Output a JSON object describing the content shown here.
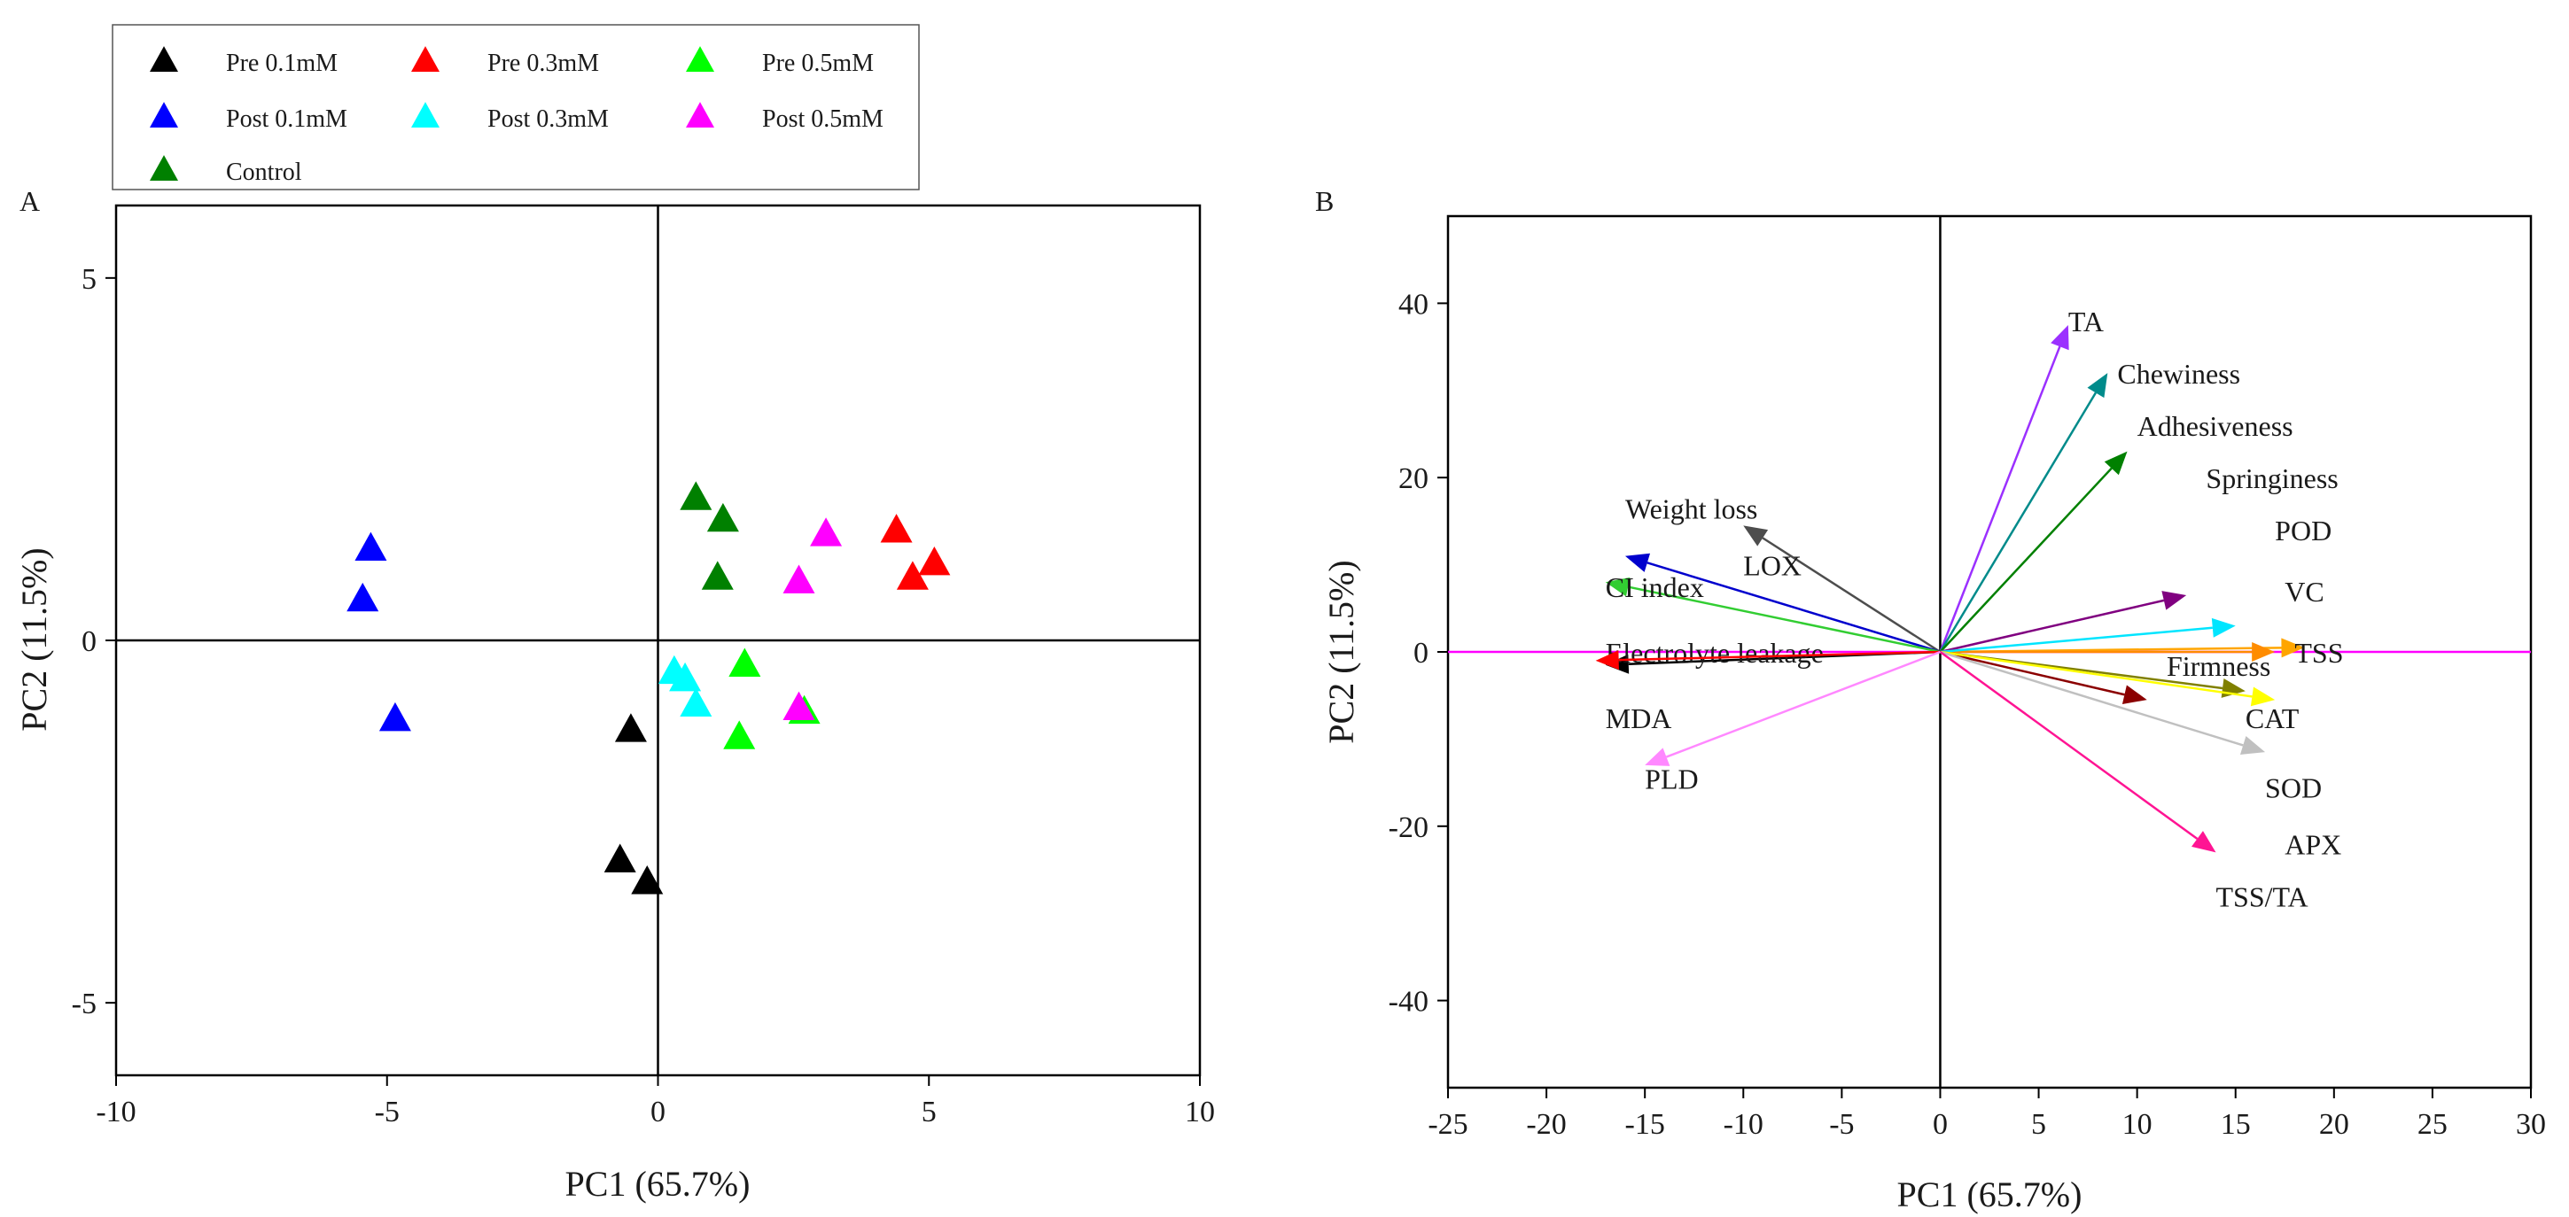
{
  "chart_data": [
    {
      "type": "scatter",
      "panel_label": "A",
      "xlabel": "PC1 (65.7%)",
      "ylabel": "PC2 (11.5%)",
      "xlim": [
        -10,
        10
      ],
      "ylim": [
        -6,
        6
      ],
      "xticks": [
        -10,
        -5,
        0,
        5,
        10
      ],
      "yticks": [
        -5,
        0,
        5
      ],
      "reference_lines": {
        "x": 0,
        "y": 0
      },
      "marker": "triangle",
      "legend_position": "top-left, above plot",
      "series": [
        {
          "name": "Pre 0.1mM",
          "color": "#000000",
          "points": [
            [
              -0.5,
              -1.25
            ],
            [
              -0.7,
              -3.05
            ],
            [
              -0.2,
              -3.35
            ]
          ]
        },
        {
          "name": "Pre 0.3mM",
          "color": "#ff0000",
          "points": [
            [
              4.4,
              1.5
            ],
            [
              5.1,
              1.05
            ],
            [
              4.7,
              0.85
            ]
          ]
        },
        {
          "name": "Pre 0.5mM",
          "color": "#00ff00",
          "points": [
            [
              1.6,
              -0.35
            ],
            [
              1.5,
              -1.35
            ],
            [
              2.7,
              -1.0
            ]
          ]
        },
        {
          "name": "Post 0.1mM",
          "color": "#0000ff",
          "points": [
            [
              -5.3,
              1.25
            ],
            [
              -5.45,
              0.55
            ],
            [
              -4.85,
              -1.1
            ]
          ]
        },
        {
          "name": "Post 0.3mM",
          "color": "#00ffff",
          "points": [
            [
              0.3,
              -0.45
            ],
            [
              0.5,
              -0.55
            ],
            [
              0.7,
              -0.9
            ]
          ]
        },
        {
          "name": "Post 0.5mM",
          "color": "#ff00ff",
          "points": [
            [
              3.1,
              1.45
            ],
            [
              2.6,
              0.8
            ],
            [
              2.6,
              -0.95
            ]
          ]
        },
        {
          "name": "Control",
          "color": "#008000",
          "points": [
            [
              0.7,
              1.95
            ],
            [
              1.2,
              1.65
            ],
            [
              1.1,
              0.85
            ]
          ]
        }
      ]
    },
    {
      "type": "biplot",
      "panel_label": "B",
      "xlabel": "PC1 (65.7%)",
      "ylabel": "PC2 (11.5%)",
      "xlim": [
        -25,
        30
      ],
      "ylim": [
        -50,
        50
      ],
      "xticks": [
        -25,
        -20,
        -15,
        -10,
        -5,
        0,
        5,
        10,
        15,
        20,
        25,
        30
      ],
      "yticks": [
        -40,
        -20,
        0,
        20,
        40
      ],
      "reference_lines": {
        "x": 0,
        "y": 0,
        "y_color": "#ff00ff"
      },
      "vectors": [
        {
          "name": "TA",
          "color": "#9b30ff",
          "x": 6.5,
          "y": 37.5,
          "label_x": 6.5,
          "label_y": 38
        },
        {
          "name": "Chewiness",
          "color": "#008b8b",
          "x": 8.5,
          "y": 32,
          "label_x": 9,
          "label_y": 32
        },
        {
          "name": "Adhesiveness",
          "color": "#008000",
          "x": 9.5,
          "y": 23,
          "label_x": 10,
          "label_y": 26
        },
        {
          "name": "Springiness",
          "color": "#ffa500",
          "x": 18.5,
          "y": 0.5,
          "label_x": 13.5,
          "label_y": 20
        },
        {
          "name": "POD",
          "color": "#ff8c00",
          "x": 17,
          "y": 0,
          "label_x": 17,
          "label_y": 14
        },
        {
          "name": "VC",
          "color": "#800080",
          "x": 12.5,
          "y": 6.5,
          "label_x": 17.5,
          "label_y": 7
        },
        {
          "name": "TSS",
          "color": "#00e5ff",
          "x": 15,
          "y": 3,
          "label_x": 18,
          "label_y": 0
        },
        {
          "name": "Firmness",
          "color": "#8b0000",
          "x": 10.5,
          "y": -5.5,
          "label_x": 11.5,
          "label_y": -1.5
        },
        {
          "name": "CAT",
          "color": "#808000",
          "x": 15.5,
          "y": -4.5,
          "label_x": 15.5,
          "label_y": -7.5
        },
        {
          "name": "",
          "color": "#ffff00",
          "x": 17,
          "y": -5.5,
          "label_x": 0,
          "label_y": 0
        },
        {
          "name": "SOD",
          "color": "#c0c0c0",
          "x": 16.5,
          "y": -11.5,
          "label_x": 16.5,
          "label_y": -15.5
        },
        {
          "name": "APX",
          "color": "#ff1493",
          "x": 14,
          "y": -23,
          "label_x": 17.5,
          "label_y": -22
        },
        {
          "name": "TSS/TA",
          "color": "",
          "x": 0,
          "y": 0,
          "label_x": 14,
          "label_y": -28
        },
        {
          "name": "Weight loss",
          "color": "#4d4d4d",
          "x": -10,
          "y": 14.5,
          "label_x": -16,
          "label_y": 16.5
        },
        {
          "name": "LOX",
          "color": "#0000cd",
          "x": -16,
          "y": 11,
          "label_x": -10,
          "label_y": 10
        },
        {
          "name": "CI index",
          "color": "#32cd32",
          "x": -17,
          "y": 8,
          "label_x": -17,
          "label_y": 7.5
        },
        {
          "name": "Electrolyte leakage",
          "color": "#000000",
          "x": -17,
          "y": -1.5,
          "label_x": -17,
          "label_y": 0
        },
        {
          "name": "MDA",
          "color": "#ff0000",
          "x": -17.5,
          "y": -1,
          "label_x": -17,
          "label_y": -7.5
        },
        {
          "name": "PLD",
          "color": "#ff88ff",
          "x": -15,
          "y": -13,
          "label_x": -15,
          "label_y": -14.5
        }
      ]
    }
  ]
}
